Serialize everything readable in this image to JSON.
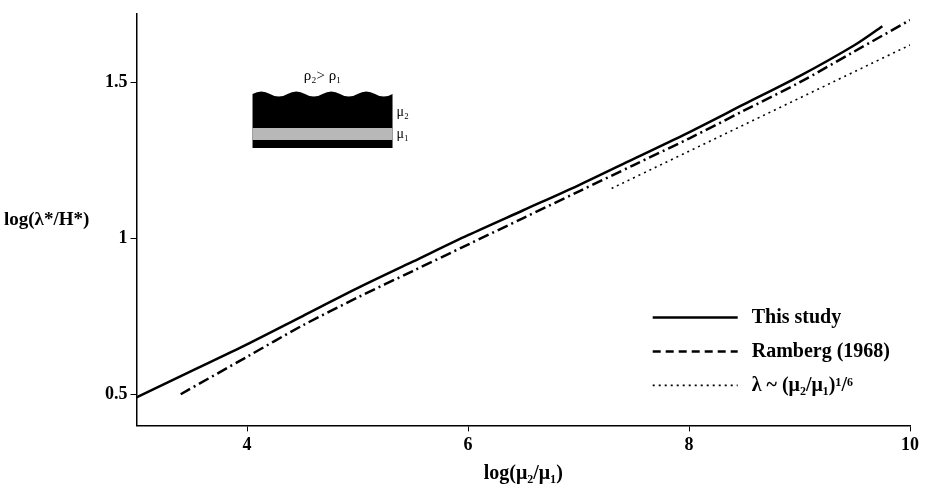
{
  "chart_data": {
    "type": "line",
    "xlabel": "log(μ₂/μ₁)",
    "ylabel": "log(λ*/H*)",
    "annotations": [
      "ρ₂> ρ₁",
      "μ₂",
      "μ₁"
    ],
    "xlim": [
      3,
      10
    ],
    "xticks": [
      4,
      6,
      8,
      10
    ],
    "ylim": [
      0.4,
      1.72
    ],
    "yticks": [
      0.5,
      1,
      1.5
    ],
    "grid": false,
    "legend": "lower right",
    "series": [
      {
        "name": "This study",
        "color": "#000000",
        "line_style": "solid",
        "x": [
          3,
          3.5,
          4,
          4.5,
          5,
          5.5,
          6,
          6.5,
          7,
          7.5,
          8,
          8.5,
          9,
          9.5,
          9.75
        ],
        "values": [
          0.49,
          0.575,
          0.66,
          0.75,
          0.84,
          0.925,
          1.01,
          1.09,
          1.17,
          1.255,
          1.34,
          1.43,
          1.52,
          1.62,
          1.68
        ]
      },
      {
        "name": "Ramberg (1968)",
        "color": "#000000",
        "line_style": "dashdot",
        "x": [
          3.4,
          4,
          4.5,
          5,
          5.5,
          6,
          6.5,
          7,
          7.5,
          8,
          8.5,
          9,
          9.5,
          10
        ],
        "values": [
          0.5,
          0.62,
          0.72,
          0.81,
          0.895,
          0.98,
          1.065,
          1.15,
          1.235,
          1.32,
          1.41,
          1.5,
          1.6,
          1.7
        ]
      },
      {
        "name": "λ ~ (μ₂/μ₁)¹/⁶",
        "color": "#000000",
        "line_style": "dotted",
        "x": [
          7.3,
          10
        ],
        "values": [
          1.16,
          1.62
        ]
      }
    ]
  }
}
